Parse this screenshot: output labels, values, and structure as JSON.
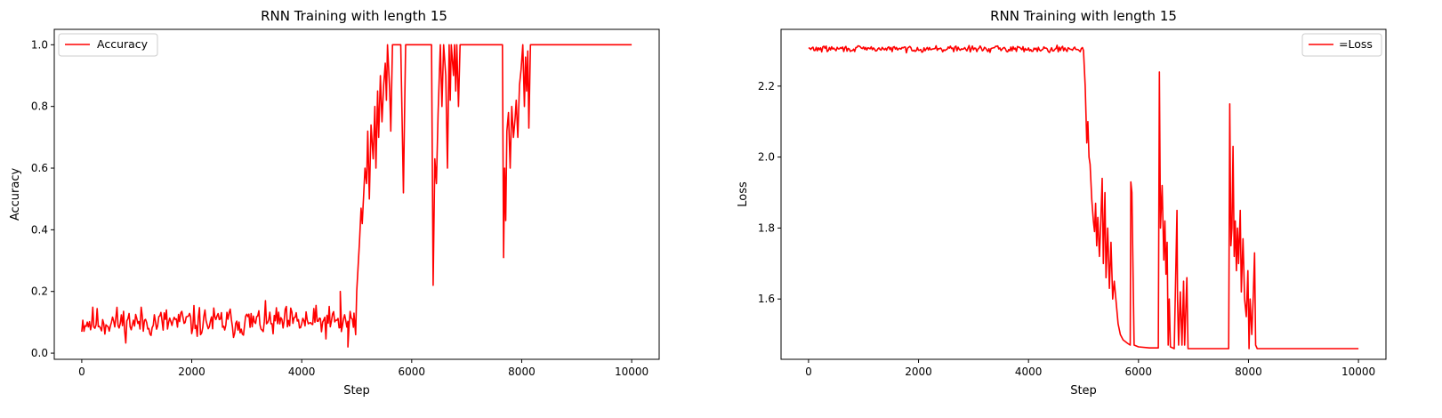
{
  "chart_data": [
    {
      "type": "line",
      "title": "RNN Training with length 15",
      "xlabel": "Step",
      "ylabel": "Accuracy",
      "xlim": [
        -500,
        10500
      ],
      "ylim": [
        -0.02,
        1.05
      ],
      "xticks": [
        0,
        2000,
        4000,
        6000,
        8000,
        10000
      ],
      "xtick_labels": [
        "0",
        "2000",
        "4000",
        "6000",
        "8000",
        "10000"
      ],
      "yticks": [
        0.0,
        0.2,
        0.4,
        0.6,
        0.8,
        1.0
      ],
      "ytick_labels": [
        "0.0",
        "0.2",
        "0.4",
        "0.6",
        "0.8",
        "1.0"
      ],
      "grid": false,
      "legend_position": "upper-left",
      "series": [
        {
          "name": "Accuracy",
          "color": "#ff0000",
          "noise": {
            "x_start": 0,
            "x_end": 4950,
            "step": 20,
            "center": 0.1,
            "spread": 0.035,
            "seed": 11
          },
          "points": [
            [
              4700,
              0.2
            ],
            [
              4720,
              0.07
            ],
            [
              4840,
              0.02
            ],
            [
              4950,
              0.13
            ],
            [
              4980,
              0.06
            ],
            [
              5000,
              0.2
            ],
            [
              5050,
              0.36
            ],
            [
              5080,
              0.47
            ],
            [
              5100,
              0.42
            ],
            [
              5150,
              0.6
            ],
            [
              5180,
              0.55
            ],
            [
              5200,
              0.72
            ],
            [
              5230,
              0.5
            ],
            [
              5260,
              0.74
            ],
            [
              5300,
              0.63
            ],
            [
              5330,
              0.8
            ],
            [
              5350,
              0.6
            ],
            [
              5380,
              0.85
            ],
            [
              5400,
              0.7
            ],
            [
              5430,
              0.9
            ],
            [
              5460,
              0.75
            ],
            [
              5490,
              0.87
            ],
            [
              5520,
              0.94
            ],
            [
              5540,
              0.82
            ],
            [
              5560,
              1.0
            ],
            [
              5600,
              0.85
            ],
            [
              5620,
              0.72
            ],
            [
              5650,
              1.0
            ],
            [
              5700,
              1.0
            ],
            [
              5800,
              1.0
            ],
            [
              5850,
              0.52
            ],
            [
              5870,
              0.78
            ],
            [
              5890,
              1.0
            ],
            [
              6000,
              1.0
            ],
            [
              6100,
              1.0
            ],
            [
              6200,
              1.0
            ],
            [
              6300,
              1.0
            ],
            [
              6360,
              1.0
            ],
            [
              6390,
              0.22
            ],
            [
              6420,
              0.63
            ],
            [
              6450,
              0.55
            ],
            [
              6480,
              0.78
            ],
            [
              6520,
              1.0
            ],
            [
              6550,
              0.8
            ],
            [
              6580,
              1.0
            ],
            [
              6620,
              0.9
            ],
            [
              6650,
              0.6
            ],
            [
              6680,
              1.0
            ],
            [
              6700,
              0.82
            ],
            [
              6720,
              1.0
            ],
            [
              6760,
              0.9
            ],
            [
              6780,
              1.0
            ],
            [
              6800,
              0.85
            ],
            [
              6820,
              1.0
            ],
            [
              6850,
              0.8
            ],
            [
              6880,
              1.0
            ],
            [
              7000,
              1.0
            ],
            [
              7200,
              1.0
            ],
            [
              7400,
              1.0
            ],
            [
              7600,
              1.0
            ],
            [
              7650,
              1.0
            ],
            [
              7670,
              0.31
            ],
            [
              7690,
              0.6
            ],
            [
              7710,
              0.43
            ],
            [
              7730,
              0.72
            ],
            [
              7760,
              0.78
            ],
            [
              7790,
              0.6
            ],
            [
              7820,
              0.8
            ],
            [
              7850,
              0.7
            ],
            [
              7880,
              0.76
            ],
            [
              7900,
              0.82
            ],
            [
              7930,
              0.7
            ],
            [
              7960,
              0.87
            ],
            [
              7990,
              0.92
            ],
            [
              8020,
              1.0
            ],
            [
              8050,
              0.8
            ],
            [
              8070,
              0.96
            ],
            [
              8090,
              0.85
            ],
            [
              8110,
              0.98
            ],
            [
              8130,
              0.73
            ],
            [
              8160,
              1.0
            ],
            [
              8200,
              1.0
            ],
            [
              8500,
              1.0
            ],
            [
              9000,
              1.0
            ],
            [
              9500,
              1.0
            ],
            [
              10000,
              1.0
            ]
          ]
        }
      ]
    },
    {
      "type": "line",
      "title": "RNN Training with length 15",
      "xlabel": "Step",
      "ylabel": "Loss",
      "xlim": [
        -500,
        10500
      ],
      "ylim": [
        1.43,
        2.36
      ],
      "xticks": [
        0,
        2000,
        4000,
        6000,
        8000,
        10000
      ],
      "xtick_labels": [
        "0",
        "2000",
        "4000",
        "6000",
        "8000",
        "10000"
      ],
      "yticks": [
        1.6,
        1.8,
        2.0,
        2.2
      ],
      "ytick_labels": [
        "1.6",
        "1.8",
        "2.0",
        "2.2"
      ],
      "grid": false,
      "legend_position": "upper-right",
      "series": [
        {
          "name": "=Loss",
          "color": "#ff0000",
          "noise": {
            "x_start": 0,
            "x_end": 4980,
            "step": 20,
            "center": 2.305,
            "spread": 0.006,
            "seed": 29
          },
          "points": [
            [
              5000,
              2.3
            ],
            [
              5030,
              2.2
            ],
            [
              5060,
              2.04
            ],
            [
              5080,
              2.1
            ],
            [
              5100,
              2.0
            ],
            [
              5120,
              1.98
            ],
            [
              5150,
              1.88
            ],
            [
              5180,
              1.82
            ],
            [
              5200,
              1.79
            ],
            [
              5220,
              1.87
            ],
            [
              5240,
              1.75
            ],
            [
              5260,
              1.83
            ],
            [
              5290,
              1.72
            ],
            [
              5310,
              1.8
            ],
            [
              5340,
              1.94
            ],
            [
              5360,
              1.7
            ],
            [
              5390,
              1.9
            ],
            [
              5410,
              1.66
            ],
            [
              5440,
              1.8
            ],
            [
              5470,
              1.63
            ],
            [
              5500,
              1.76
            ],
            [
              5530,
              1.6
            ],
            [
              5560,
              1.65
            ],
            [
              5600,
              1.58
            ],
            [
              5630,
              1.53
            ],
            [
              5670,
              1.5
            ],
            [
              5720,
              1.485
            ],
            [
              5800,
              1.475
            ],
            [
              5850,
              1.47
            ],
            [
              5860,
              1.93
            ],
            [
              5880,
              1.9
            ],
            [
              5900,
              1.69
            ],
            [
              5920,
              1.47
            ],
            [
              6000,
              1.465
            ],
            [
              6200,
              1.462
            ],
            [
              6360,
              1.462
            ],
            [
              6380,
              2.24
            ],
            [
              6400,
              1.8
            ],
            [
              6430,
              1.92
            ],
            [
              6460,
              1.71
            ],
            [
              6480,
              1.82
            ],
            [
              6500,
              1.67
            ],
            [
              6520,
              1.76
            ],
            [
              6540,
              1.47
            ],
            [
              6560,
              1.6
            ],
            [
              6580,
              1.465
            ],
            [
              6650,
              1.46
            ],
            [
              6700,
              1.85
            ],
            [
              6710,
              1.6
            ],
            [
              6730,
              1.47
            ],
            [
              6760,
              1.62
            ],
            [
              6790,
              1.47
            ],
            [
              6820,
              1.65
            ],
            [
              6840,
              1.47
            ],
            [
              6880,
              1.66
            ],
            [
              6900,
              1.46
            ],
            [
              7000,
              1.46
            ],
            [
              7200,
              1.46
            ],
            [
              7400,
              1.46
            ],
            [
              7640,
              1.46
            ],
            [
              7660,
              2.15
            ],
            [
              7680,
              1.75
            ],
            [
              7700,
              1.8
            ],
            [
              7720,
              2.03
            ],
            [
              7740,
              1.72
            ],
            [
              7760,
              1.82
            ],
            [
              7780,
              1.68
            ],
            [
              7800,
              1.8
            ],
            [
              7820,
              1.7
            ],
            [
              7850,
              1.85
            ],
            [
              7870,
              1.62
            ],
            [
              7900,
              1.77
            ],
            [
              7930,
              1.6
            ],
            [
              7960,
              1.55
            ],
            [
              7990,
              1.68
            ],
            [
              8010,
              1.46
            ],
            [
              8030,
              1.6
            ],
            [
              8060,
              1.5
            ],
            [
              8090,
              1.62
            ],
            [
              8110,
              1.73
            ],
            [
              8130,
              1.47
            ],
            [
              8160,
              1.46
            ],
            [
              8500,
              1.46
            ],
            [
              9000,
              1.46
            ],
            [
              9500,
              1.46
            ],
            [
              10000,
              1.46
            ]
          ]
        }
      ]
    }
  ]
}
